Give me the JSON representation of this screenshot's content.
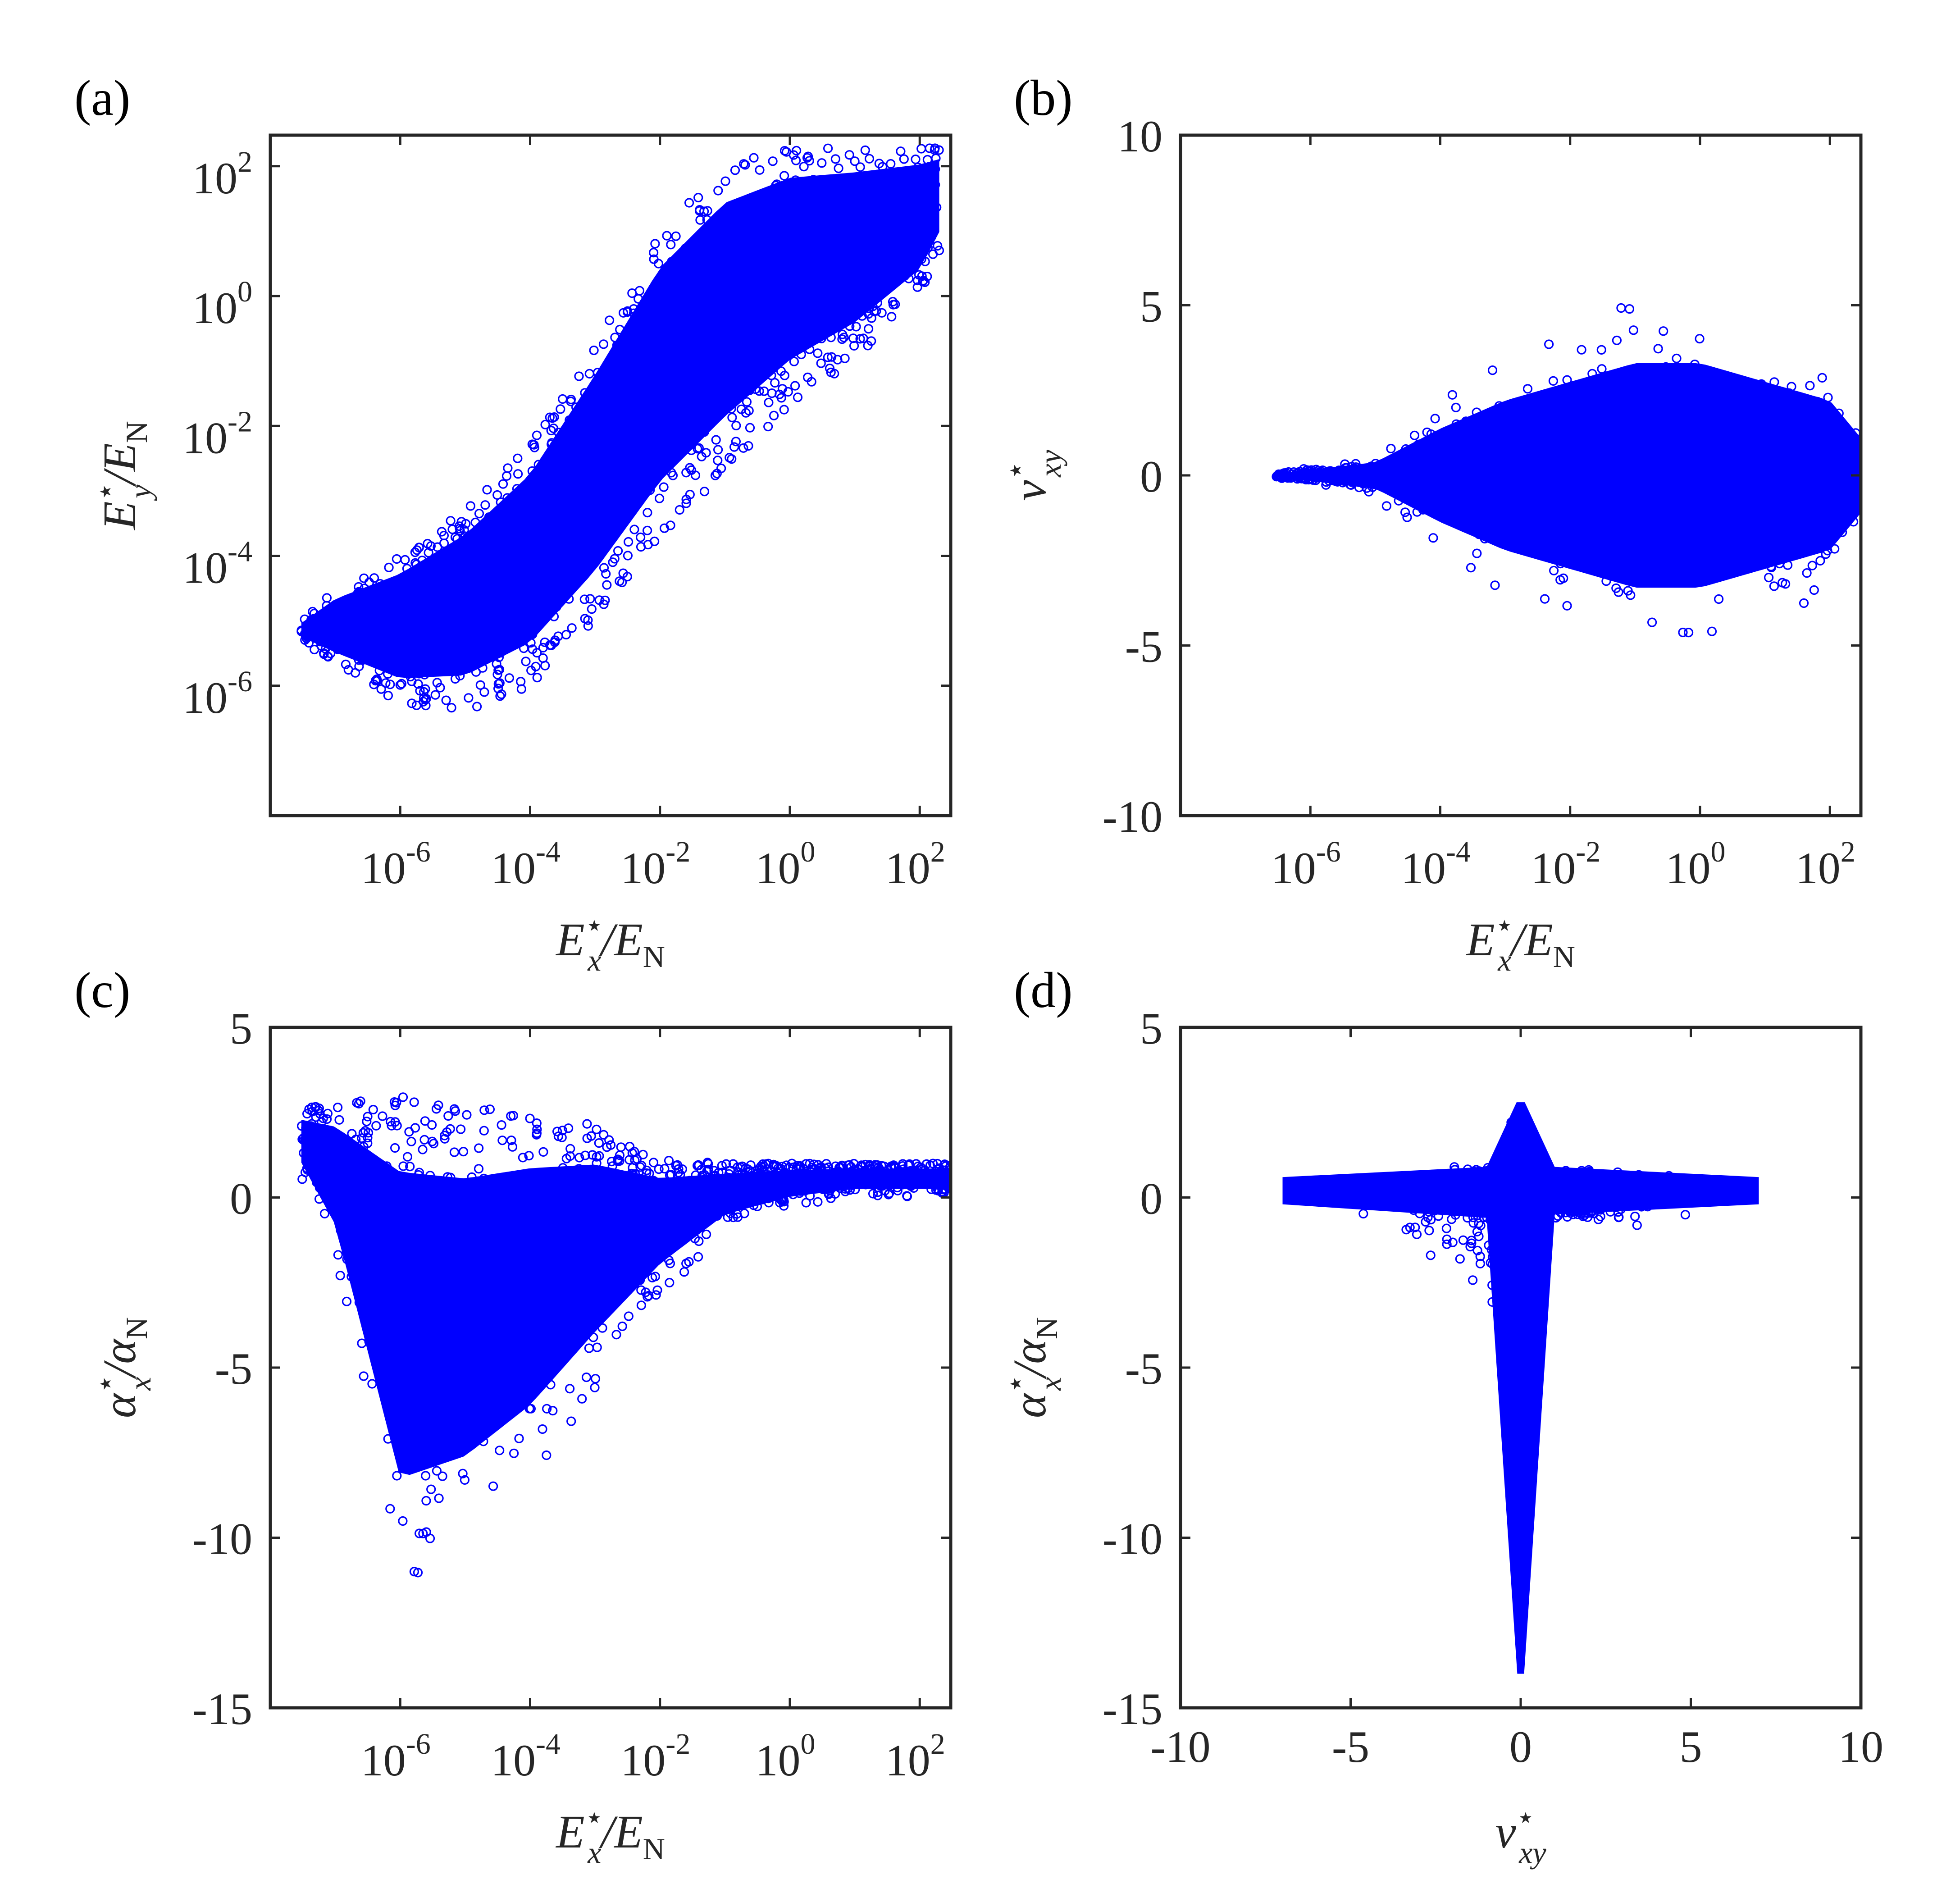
{
  "chart_data": [
    {
      "type": "scatter",
      "panel": "(a)",
      "xscale": "log",
      "yscale": "log",
      "xlim": [
        1e-08,
        300
      ],
      "ylim": [
        1e-08,
        300
      ],
      "xticks": [
        1e-06,
        0.0001,
        0.01,
        1,
        100
      ],
      "xtick_labels": [
        {
          "base": "10",
          "exp": "-6"
        },
        {
          "base": "10",
          "exp": "-4"
        },
        {
          "base": "10",
          "exp": "-2"
        },
        {
          "base": "10",
          "exp": "0"
        },
        {
          "base": "10",
          "exp": "2"
        }
      ],
      "yticks": [
        1e-06,
        0.0001,
        0.01,
        1,
        100
      ],
      "ytick_labels": [
        {
          "base": "10",
          "exp": "-6"
        },
        {
          "base": "10",
          "exp": "-4"
        },
        {
          "base": "10",
          "exp": "-2"
        },
        {
          "base": "10",
          "exp": "0"
        },
        {
          "base": "10",
          "exp": "2"
        }
      ],
      "xlabel": {
        "sym": "E",
        "sup": "⋆",
        "sub": "x",
        "den": "E",
        "den_sub": "N"
      },
      "ylabel": {
        "sym": "E",
        "sup": "⋆",
        "sub": "y",
        "den": "E",
        "den_sub": "N"
      },
      "grid": false,
      "marker": "open-circle",
      "color": "#0000ff",
      "envelope": {
        "x": [
          3e-08,
          1e-07,
          1e-06,
          1e-05,
          0.0001,
          0.001,
          0.01,
          0.1,
          1,
          10,
          100,
          200
        ],
        "y_low": [
          5e-06,
          2e-06,
          5e-07,
          4e-07,
          1e-06,
          1e-05,
          0.0002,
          0.002,
          0.02,
          0.1,
          1,
          5
        ],
        "y_high": [
          1e-05,
          3e-05,
          0.0001,
          0.0005,
          0.005,
          0.2,
          10,
          100,
          200,
          200,
          200,
          200
        ]
      }
    },
    {
      "type": "scatter",
      "panel": "(b)",
      "xscale": "log",
      "yscale": "linear",
      "xlim": [
        1e-08,
        300
      ],
      "ylim": [
        -10,
        10
      ],
      "xticks": [
        1e-06,
        0.0001,
        0.01,
        1,
        100
      ],
      "xtick_labels": [
        {
          "base": "10",
          "exp": "-6"
        },
        {
          "base": "10",
          "exp": "-4"
        },
        {
          "base": "10",
          "exp": "-2"
        },
        {
          "base": "10",
          "exp": "0"
        },
        {
          "base": "10",
          "exp": "2"
        }
      ],
      "yticks": [
        -10,
        -5,
        0,
        5,
        10
      ],
      "ytick_labels": [
        "-10",
        "-5",
        "0",
        "5",
        "10"
      ],
      "xlabel": {
        "sym": "E",
        "sup": "⋆",
        "sub": "x",
        "den": "E",
        "den_sub": "N"
      },
      "ylabel": {
        "sym": "ν",
        "sup": "⋆",
        "sub": "xy"
      },
      "grid": false,
      "marker": "open-circle",
      "color": "#0000ff",
      "envelope": {
        "x": [
          3e-07,
          1e-06,
          1e-05,
          0.0001,
          0.001,
          0.01,
          0.1,
          1,
          10,
          100,
          300
        ],
        "y_spread": [
          0.1,
          0.3,
          0.7,
          2.5,
          4,
          5,
          6,
          6,
          5,
          4,
          2
        ]
      }
    },
    {
      "type": "scatter",
      "panel": "(c)",
      "xscale": "log",
      "yscale": "linear",
      "xlim": [
        1e-08,
        300
      ],
      "ylim": [
        -15,
        5
      ],
      "xticks": [
        1e-06,
        0.0001,
        0.01,
        1,
        100
      ],
      "xtick_labels": [
        {
          "base": "10",
          "exp": "-6"
        },
        {
          "base": "10",
          "exp": "-4"
        },
        {
          "base": "10",
          "exp": "-2"
        },
        {
          "base": "10",
          "exp": "0"
        },
        {
          "base": "10",
          "exp": "2"
        }
      ],
      "yticks": [
        -15,
        -10,
        -5,
        0,
        5
      ],
      "ytick_labels": [
        "-15",
        "-10",
        "-5",
        "0",
        "5"
      ],
      "xlabel": {
        "sym": "E",
        "sup": "⋆",
        "sub": "x",
        "den": "E",
        "den_sub": "N"
      },
      "ylabel": {
        "sym": "α",
        "sup": "⋆",
        "sub": "x",
        "den": "α",
        "den_sub": "N"
      },
      "grid": false,
      "marker": "open-circle",
      "color": "#0000ff",
      "envelope": {
        "x": [
          3e-08,
          1e-07,
          1e-06,
          1e-05,
          0.0001,
          0.001,
          0.01,
          0.1,
          1,
          10,
          100,
          300
        ],
        "y_low": [
          0.5,
          -2,
          -12,
          -11,
          -9,
          -6,
          -3,
          -1,
          -0.3,
          0,
          0,
          0
        ],
        "y_high": [
          2.6,
          2.8,
          3,
          2.6,
          2.6,
          2.2,
          1.2,
          1,
          1,
          1,
          1,
          1
        ]
      }
    },
    {
      "type": "scatter",
      "panel": "(d)",
      "xscale": "linear",
      "yscale": "linear",
      "xlim": [
        -10,
        10
      ],
      "ylim": [
        -15,
        5
      ],
      "xticks": [
        -10,
        -5,
        0,
        5,
        10
      ],
      "xtick_labels": [
        "-10",
        "-5",
        "0",
        "5",
        "10"
      ],
      "yticks": [
        -15,
        -10,
        -5,
        0,
        5
      ],
      "ytick_labels": [
        "-15",
        "-10",
        "-5",
        "0",
        "5"
      ],
      "xlabel": {
        "sym": "ν",
        "sup": "⋆",
        "sub": "xy"
      },
      "ylabel": {
        "sym": "α",
        "sup": "⋆",
        "sub": "x",
        "den": "α",
        "den_sub": "N"
      },
      "grid": false,
      "marker": "open-circle",
      "color": "#0000ff",
      "envelope": {
        "x": [
          -10,
          -5,
          -2,
          -1,
          -0.5,
          0,
          0.5,
          1,
          2,
          5,
          10
        ],
        "y_low": [
          0,
          -0.5,
          -2,
          -3.5,
          -6,
          -15,
          -6,
          -1,
          -0.3,
          -0.1,
          0
        ],
        "y_high": [
          0.1,
          0.6,
          1,
          1,
          1,
          3,
          1,
          1,
          1,
          0.6,
          0.1
        ]
      }
    }
  ]
}
